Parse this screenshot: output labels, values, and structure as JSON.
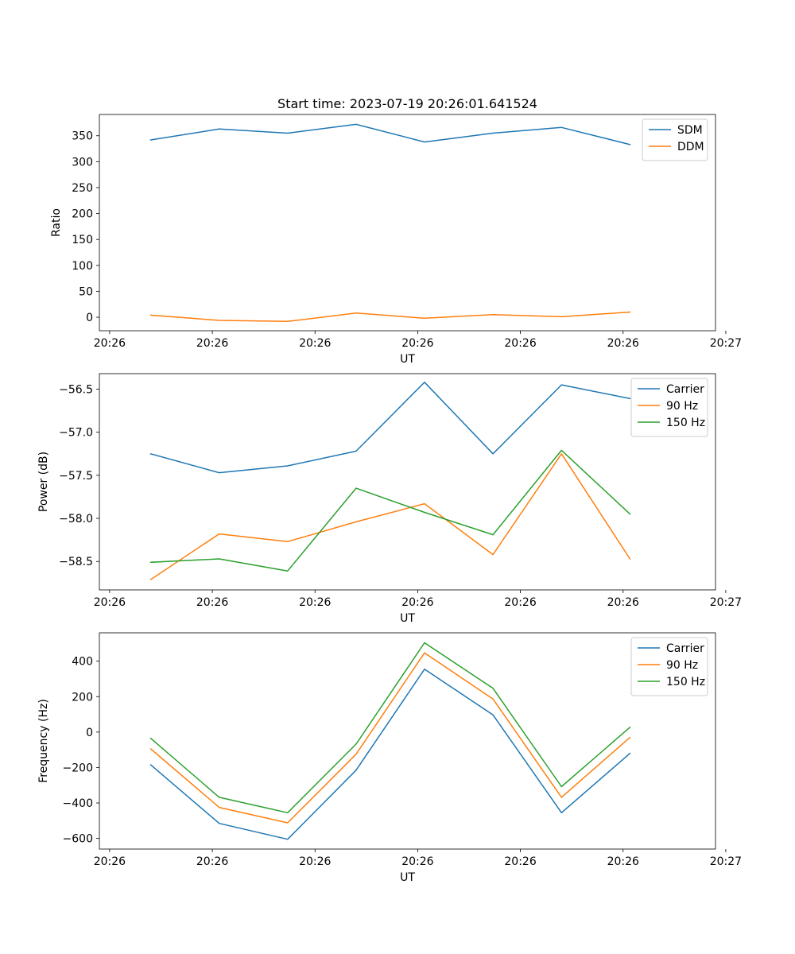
{
  "figure_title": "Start time: 2023-07-19 20:26:01.641524",
  "chart_data": [
    {
      "type": "line",
      "title": "Start time: 2023-07-19 20:26:01.641524",
      "xlabel": "UT",
      "ylabel": "Ratio",
      "x": [
        1,
        2,
        3,
        4,
        5,
        6,
        7,
        8
      ],
      "xlim": [
        0.25,
        9.25
      ],
      "xticks": [
        {
          "v": 0.4,
          "label": "20:26"
        },
        {
          "v": 1.9,
          "label": "20:26"
        },
        {
          "v": 3.4,
          "label": "20:26"
        },
        {
          "v": 4.9,
          "label": "20:26"
        },
        {
          "v": 6.4,
          "label": "20:26"
        },
        {
          "v": 7.9,
          "label": "20:26"
        },
        {
          "v": 9.4,
          "label": "20:27"
        }
      ],
      "ylim": [
        -26,
        391
      ],
      "yticks": [
        {
          "v": 0,
          "label": "0"
        },
        {
          "v": 50,
          "label": "50"
        },
        {
          "v": 100,
          "label": "100"
        },
        {
          "v": 150,
          "label": "150"
        },
        {
          "v": 200,
          "label": "200"
        },
        {
          "v": 250,
          "label": "250"
        },
        {
          "v": 300,
          "label": "300"
        },
        {
          "v": 350,
          "label": "350"
        }
      ],
      "legend_position": "top-right",
      "series": [
        {
          "name": "SDM",
          "color": "#1f77b4",
          "values": [
            342,
            363,
            355,
            372,
            338,
            355,
            366,
            333
          ]
        },
        {
          "name": "DDM",
          "color": "#ff7f0e",
          "values": [
            4,
            -6,
            -8,
            8,
            -2,
            5,
            1,
            10
          ]
        }
      ]
    },
    {
      "type": "line",
      "title": "",
      "xlabel": "UT",
      "ylabel": "Power (dB)",
      "x": [
        1,
        2,
        3,
        4,
        5,
        6,
        7,
        8
      ],
      "xlim": [
        0.25,
        9.25
      ],
      "xticks": [
        {
          "v": 0.4,
          "label": "20:26"
        },
        {
          "v": 1.9,
          "label": "20:26"
        },
        {
          "v": 3.4,
          "label": "20:26"
        },
        {
          "v": 4.9,
          "label": "20:26"
        },
        {
          "v": 6.4,
          "label": "20:26"
        },
        {
          "v": 7.9,
          "label": "20:26"
        },
        {
          "v": 9.4,
          "label": "20:27"
        }
      ],
      "ylim": [
        -58.83,
        -56.32
      ],
      "yticks": [
        {
          "v": -56.5,
          "label": "−56.5"
        },
        {
          "v": -57.0,
          "label": "−57.0"
        },
        {
          "v": -57.5,
          "label": "−57.5"
        },
        {
          "v": -58.0,
          "label": "−58.0"
        },
        {
          "v": -58.5,
          "label": "−58.5"
        }
      ],
      "legend_position": "top-right",
      "series": [
        {
          "name": "Carrier",
          "color": "#1f77b4",
          "values": [
            -57.25,
            -57.47,
            -57.39,
            -57.22,
            -56.42,
            -57.25,
            -56.45,
            -56.61
          ]
        },
        {
          "name": "90 Hz",
          "color": "#ff7f0e",
          "values": [
            -58.71,
            -58.18,
            -58.27,
            -58.04,
            -57.83,
            -58.42,
            -57.25,
            -58.47
          ]
        },
        {
          "name": "150 Hz",
          "color": "#2ca02c",
          "values": [
            -58.51,
            -58.47,
            -58.61,
            -57.65,
            -57.93,
            -58.19,
            -57.21,
            -57.95
          ]
        }
      ]
    },
    {
      "type": "line",
      "title": "",
      "xlabel": "UT",
      "ylabel": "Frequency (Hz)",
      "x": [
        1,
        2,
        3,
        4,
        5,
        6,
        7,
        8
      ],
      "xlim": [
        0.25,
        9.25
      ],
      "xticks": [
        {
          "v": 0.4,
          "label": "20:26"
        },
        {
          "v": 1.9,
          "label": "20:26"
        },
        {
          "v": 3.4,
          "label": "20:26"
        },
        {
          "v": 4.9,
          "label": "20:26"
        },
        {
          "v": 6.4,
          "label": "20:26"
        },
        {
          "v": 7.9,
          "label": "20:26"
        },
        {
          "v": 9.4,
          "label": "20:27"
        }
      ],
      "ylim": [
        -660,
        560
      ],
      "yticks": [
        {
          "v": 400,
          "label": "400"
        },
        {
          "v": 200,
          "label": "200"
        },
        {
          "v": 0,
          "label": "0"
        },
        {
          "v": -200,
          "label": "−200"
        },
        {
          "v": -400,
          "label": "−400"
        },
        {
          "v": -600,
          "label": "−600"
        }
      ],
      "legend_position": "top-right",
      "series": [
        {
          "name": "Carrier",
          "color": "#1f77b4",
          "values": [
            -185,
            -515,
            -605,
            -215,
            355,
            97,
            -455,
            -120
          ]
        },
        {
          "name": "90 Hz",
          "color": "#ff7f0e",
          "values": [
            -95,
            -425,
            -512,
            -125,
            447,
            187,
            -368,
            -30
          ]
        },
        {
          "name": "150 Hz",
          "color": "#2ca02c",
          "values": [
            -35,
            -368,
            -455,
            -68,
            504,
            247,
            -308,
            27
          ]
        }
      ]
    }
  ]
}
